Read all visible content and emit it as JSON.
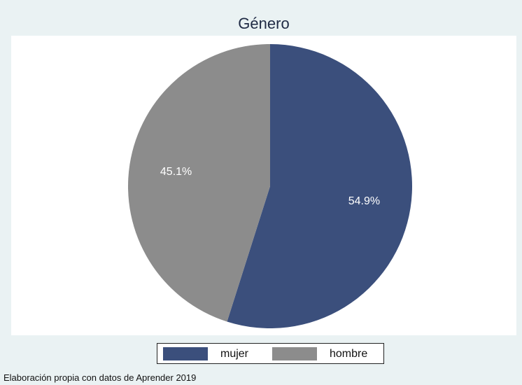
{
  "chart_data": {
    "type": "pie",
    "title": "Género",
    "slices": [
      {
        "name": "mujer",
        "value": 54.9,
        "label": "54.9%",
        "color": "#3b4f7c"
      },
      {
        "name": "hombre",
        "value": 45.1,
        "label": "45.1%",
        "color": "#8c8c8c"
      }
    ],
    "start_angle": "12 o'clock",
    "direction": "clockwise",
    "legend_position": "bottom",
    "note": "Elaboración propia con datos de Aprender 2019"
  }
}
